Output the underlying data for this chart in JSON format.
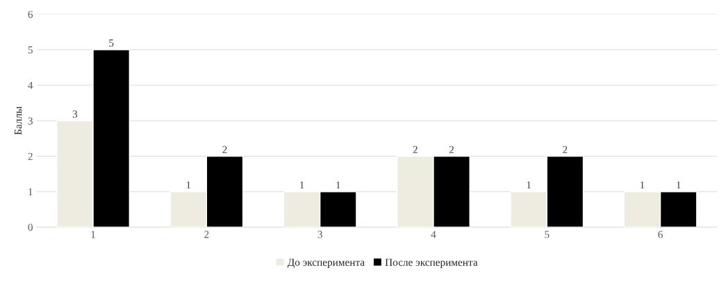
{
  "chart_data": {
    "type": "bar",
    "ylabel": "Баллы",
    "categories": [
      "1",
      "2",
      "3",
      "4",
      "5",
      "6"
    ],
    "series": [
      {
        "name": "До эксперимента",
        "color": "#eeece1",
        "values": [
          3,
          1,
          1,
          2,
          1,
          1
        ]
      },
      {
        "name": "После эксперимента",
        "color": "#000000",
        "values": [
          5,
          2,
          1,
          2,
          2,
          1
        ]
      }
    ],
    "ylim": [
      0,
      6
    ],
    "yticks": [
      0,
      1,
      2,
      3,
      4,
      5,
      6
    ],
    "grid": "y",
    "legend": "bottom",
    "data_labels": true
  }
}
